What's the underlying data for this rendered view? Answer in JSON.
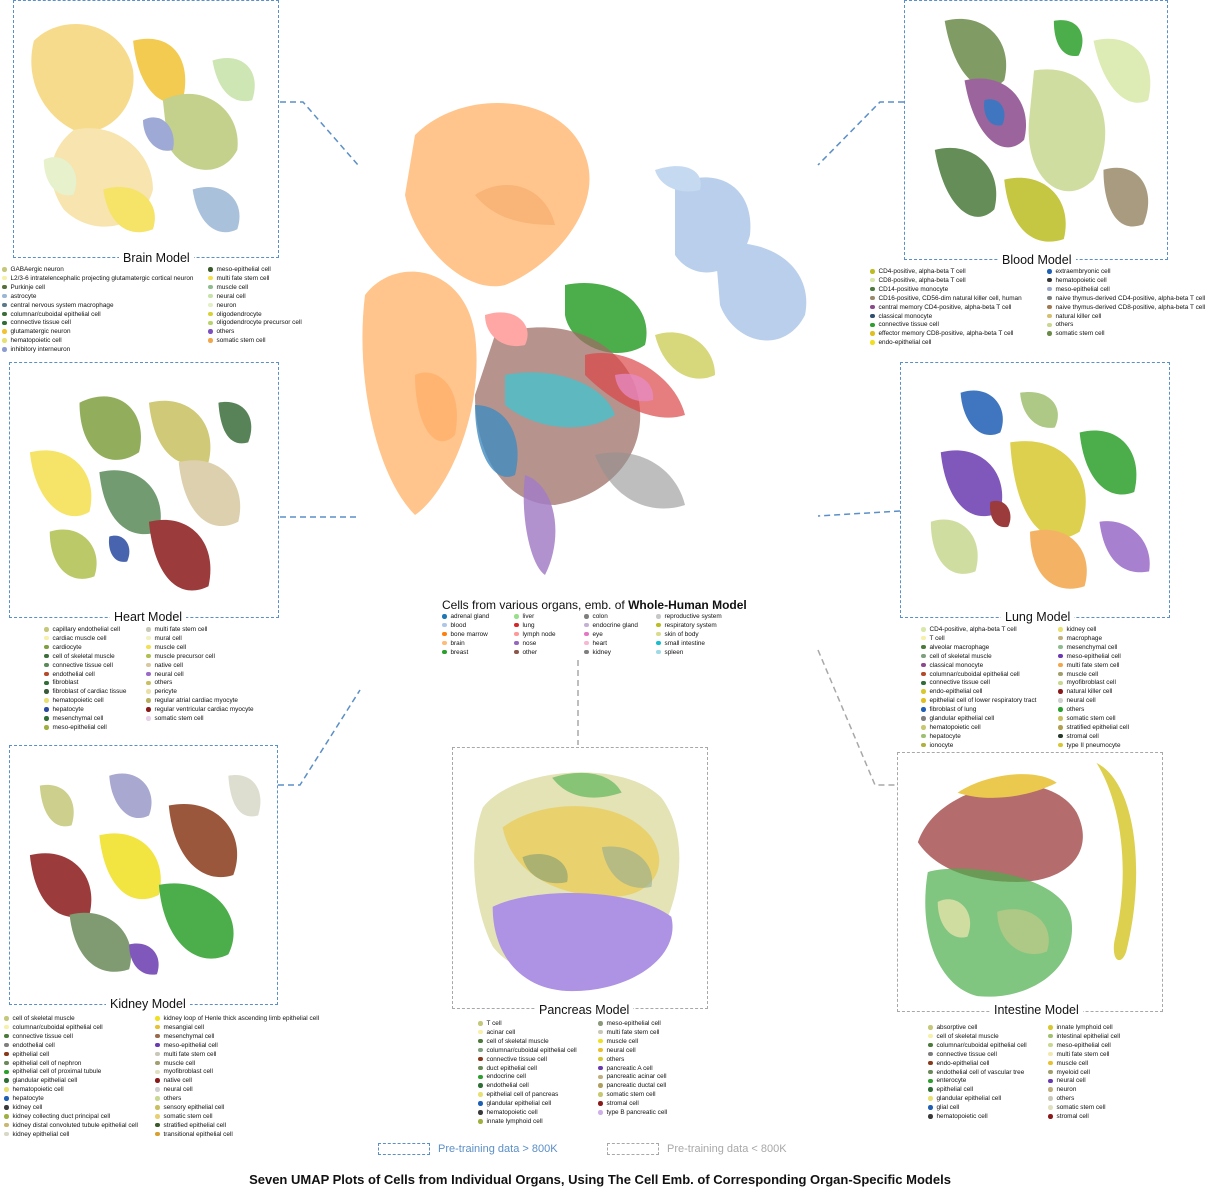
{
  "main_title": "Seven UMAP Plots of Cells from Individual Organs, Using The Cell Emb. of Corresponding Organ-Specific Models",
  "key": {
    "large": "Pre-training data > 800K",
    "small": "Pre-training data < 800K",
    "large_color": "#5b8fc7",
    "small_color": "#a8a8a8"
  },
  "center": {
    "title_prefix": "Cells from various organs, emb. of ",
    "title_bold": "Whole-Human Model",
    "legend": [
      [
        {
          "label": "adrenal gland",
          "color": "#1f77b4"
        },
        {
          "label": "blood",
          "color": "#aec7e8"
        },
        {
          "label": "bone marrow",
          "color": "#ff7f0e"
        },
        {
          "label": "brain",
          "color": "#ffbb78"
        },
        {
          "label": "breast",
          "color": "#2ca02c"
        }
      ],
      [
        {
          "label": "liver",
          "color": "#98df8a"
        },
        {
          "label": "lung",
          "color": "#d62728"
        },
        {
          "label": "lymph node",
          "color": "#ff9896"
        },
        {
          "label": "nose",
          "color": "#9467bd"
        },
        {
          "label": "other",
          "color": "#8c564b"
        }
      ],
      [
        {
          "label": "colon",
          "color": "#7f7f7f"
        },
        {
          "label": "endocrine gland",
          "color": "#c5b0d5"
        },
        {
          "label": "eye",
          "color": "#e377c2"
        },
        {
          "label": "heart",
          "color": "#f7b6d2"
        },
        {
          "label": "kidney",
          "color": "#7f7f7f"
        }
      ],
      [
        {
          "label": "reproductive system",
          "color": "#c7c7c7"
        },
        {
          "label": "respiratory system",
          "color": "#bcbd22"
        },
        {
          "label": "skin of body",
          "color": "#dbdb8d"
        },
        {
          "label": "small intestine",
          "color": "#17becf"
        },
        {
          "label": "spleen",
          "color": "#9edae5"
        }
      ]
    ]
  },
  "panels": [
    {
      "id": "brain",
      "title": "Brain Model",
      "legend": [
        [
          {
            "label": "GABAergic neuron",
            "color": "#c5c77a"
          },
          {
            "label": "L2/3-6 intratelencephalic projecting glutamatergic cortical neuron",
            "color": "#f6f0a8"
          },
          {
            "label": "Purkinje cell",
            "color": "#55703b"
          },
          {
            "label": "astrocyte",
            "color": "#9cb7d5"
          },
          {
            "label": "central nervous system macrophage",
            "color": "#5a7a8a"
          },
          {
            "label": "columnar/cuboidal epithelial cell",
            "color": "#3c6e3c"
          },
          {
            "label": "connective tissue cell",
            "color": "#2f6e35"
          },
          {
            "label": "glutamatergic neuron",
            "color": "#f1c232"
          },
          {
            "label": "hematopoietic cell",
            "color": "#e8e070"
          },
          {
            "label": "inhibitory interneuron",
            "color": "#8e9bd0"
          }
        ],
        [
          {
            "label": "meso-epithelial cell",
            "color": "#3a5a2a"
          },
          {
            "label": "multi fate stem cell",
            "color": "#f4e04d"
          },
          {
            "label": "muscle cell",
            "color": "#8fbc8f"
          },
          {
            "label": "neural cell",
            "color": "#c6e2a8"
          },
          {
            "label": "neuron",
            "color": "#e3efc4"
          },
          {
            "label": "oligodendrocyte",
            "color": "#d8d23a"
          },
          {
            "label": "oligodendrocyte precursor cell",
            "color": "#b9d36c"
          },
          {
            "label": "others",
            "color": "#7e4fc1"
          },
          {
            "label": "somatic stem cell",
            "color": "#f3a64a"
          }
        ]
      ]
    },
    {
      "id": "blood",
      "title": "Blood Model",
      "legend": [
        [
          {
            "label": "CD4-positive, alpha-beta T cell",
            "color": "#bcbd22"
          },
          {
            "label": "CD8-positive, alpha-beta T cell",
            "color": "#d8e8a8"
          },
          {
            "label": "CD14-positive monocyte",
            "color": "#4b7a3a"
          },
          {
            "label": "CD16-positive, CD56-dim natural killer cell, human",
            "color": "#9a8a6a"
          },
          {
            "label": "central memory CD4-positive, alpha-beta T cell",
            "color": "#8b4a8b"
          },
          {
            "label": "classical monocyte",
            "color": "#2f4f6f"
          },
          {
            "label": "connective tissue cell",
            "color": "#2ca02c"
          },
          {
            "label": "effector memory CD8-positive, alpha-beta T cell",
            "color": "#e0c020"
          },
          {
            "label": "endo-epithelial cell",
            "color": "#f0e020"
          }
        ],
        [
          {
            "label": "extraembryonic cell",
            "color": "#1f5fb4"
          },
          {
            "label": "hematopoietic cell",
            "color": "#3a3a3a"
          },
          {
            "label": "meso-epithelial cell",
            "color": "#9aa8c8"
          },
          {
            "label": "naive thymus-derived CD4-positive, alpha-beta T cell",
            "color": "#7f7f7f"
          },
          {
            "label": "naive thymus-derived CD8-positive, alpha-beta T cell",
            "color": "#a07a50"
          },
          {
            "label": "natural killer cell",
            "color": "#d4c070"
          },
          {
            "label": "others",
            "color": "#c8d890"
          },
          {
            "label": "somatic stem cell",
            "color": "#6a8a4a"
          }
        ]
      ]
    },
    {
      "id": "heart",
      "title": "Heart Model",
      "legend": [
        [
          {
            "label": "capillary endothelial cell",
            "color": "#c5c77a"
          },
          {
            "label": "cardiac muscle cell",
            "color": "#f6f0a8"
          },
          {
            "label": "cardiocyte",
            "color": "#7fa040"
          },
          {
            "label": "cell of skeletal muscle",
            "color": "#3c6e3c"
          },
          {
            "label": "connective tissue cell",
            "color": "#5a8a5a"
          },
          {
            "label": "endothelial cell",
            "color": "#b44a2a"
          },
          {
            "label": "fibroblast",
            "color": "#2f6e35"
          },
          {
            "label": "fibroblast of cardiac tissue",
            "color": "#3a5a3a"
          },
          {
            "label": "hematopoietic cell",
            "color": "#e8e070"
          },
          {
            "label": "hepatocyte",
            "color": "#2a4aa0"
          },
          {
            "label": "mesenchymal cell",
            "color": "#2f6e35"
          },
          {
            "label": "meso-epithelial cell",
            "color": "#a0b040"
          }
        ],
        [
          {
            "label": "multi fate stem cell",
            "color": "#c8c8b8"
          },
          {
            "label": "mural cell",
            "color": "#f0f0c0"
          },
          {
            "label": "muscle cell",
            "color": "#f4e04d"
          },
          {
            "label": "muscle precursor cell",
            "color": "#b0c050"
          },
          {
            "label": "native cell",
            "color": "#d8c8a0"
          },
          {
            "label": "neural cell",
            "color": "#9a6ac8"
          },
          {
            "label": "others",
            "color": "#c8c060"
          },
          {
            "label": "pericyte",
            "color": "#e8e0a8"
          },
          {
            "label": "regular atrial cardiac myocyte",
            "color": "#b8b060"
          },
          {
            "label": "regular ventricular cardiac myocyte",
            "color": "#8a1a1a"
          },
          {
            "label": "somatic stem cell",
            "color": "#e8d0e8"
          }
        ]
      ]
    },
    {
      "id": "lung",
      "title": "Lung Model",
      "legend": [
        [
          {
            "label": "CD4-positive, alpha-beta T cell",
            "color": "#d8e8a8"
          },
          {
            "label": "T cell",
            "color": "#f6f0a8"
          },
          {
            "label": "alveolar macrophage",
            "color": "#4b7a3a"
          },
          {
            "label": "cell of skeletal muscle",
            "color": "#7f9f7f"
          },
          {
            "label": "classical monocyte",
            "color": "#8b4a8b"
          },
          {
            "label": "columnar/cuboidal epithelial cell",
            "color": "#b44a2a"
          },
          {
            "label": "connective tissue cell",
            "color": "#2f6e35"
          },
          {
            "label": "endo-epithelial cell",
            "color": "#d8c830"
          },
          {
            "label": "epithelial cell of lower respiratory tract",
            "color": "#e0c020"
          },
          {
            "label": "fibroblast of lung",
            "color": "#1f5fb4"
          },
          {
            "label": "glandular epithelial cell",
            "color": "#7f7f7f"
          },
          {
            "label": "hematopoietic cell",
            "color": "#c8c870"
          },
          {
            "label": "hepatocyte",
            "color": "#a0c070"
          },
          {
            "label": "ionocyte",
            "color": "#b0b040"
          }
        ],
        [
          {
            "label": "kidney cell",
            "color": "#e8e070"
          },
          {
            "label": "macrophage",
            "color": "#c0b080"
          },
          {
            "label": "mesenchymal cell",
            "color": "#8fbc8f"
          },
          {
            "label": "meso-epithelial cell",
            "color": "#6a3ab0"
          },
          {
            "label": "multi fate stem cell",
            "color": "#f3a64a"
          },
          {
            "label": "muscle cell",
            "color": "#a0a070"
          },
          {
            "label": "myofibroblast cell",
            "color": "#c8d890"
          },
          {
            "label": "natural killer cell",
            "color": "#8a1a1a"
          },
          {
            "label": "neural cell",
            "color": "#d0d0d0"
          },
          {
            "label": "others",
            "color": "#2ca02c"
          },
          {
            "label": "somatic stem cell",
            "color": "#c8c060"
          },
          {
            "label": "stratified epithelial cell",
            "color": "#b0a050"
          },
          {
            "label": "stromal cell",
            "color": "#2a3a2a"
          },
          {
            "label": "type II pneumocyte",
            "color": "#d8c830"
          }
        ]
      ]
    },
    {
      "id": "kidney",
      "title": "Kidney Model",
      "legend": [
        [
          {
            "label": "cell of skeletal muscle",
            "color": "#c5c77a"
          },
          {
            "label": "columnar/cuboidal epithelial cell",
            "color": "#f6f0a8"
          },
          {
            "label": "connective tissue cell",
            "color": "#4b7a3a"
          },
          {
            "label": "endothelial cell",
            "color": "#7f7f7f"
          },
          {
            "label": "epithelial cell",
            "color": "#8a3a1a"
          },
          {
            "label": "epithelial cell of nephron",
            "color": "#6a8a5a"
          },
          {
            "label": "epithelial cell of proximal tubule",
            "color": "#2ca02c"
          },
          {
            "label": "glandular epithelial cell",
            "color": "#2f6e35"
          },
          {
            "label": "hematopoietic cell",
            "color": "#e8e070"
          },
          {
            "label": "hepatocyte",
            "color": "#1f5fb4"
          },
          {
            "label": "kidney cell",
            "color": "#3a3a3a"
          },
          {
            "label": "kidney collecting duct principal cell",
            "color": "#a0b040"
          },
          {
            "label": "kidney distal convoluted tubule epithelial cell",
            "color": "#c8b870"
          },
          {
            "label": "kidney epithelial cell",
            "color": "#d8d8c8"
          }
        ],
        [
          {
            "label": "kidney loop of Henle thick ascending limb epithelial cell",
            "color": "#f0e020"
          },
          {
            "label": "mesangial cell",
            "color": "#e8c030"
          },
          {
            "label": "mesenchymal cell",
            "color": "#9a6a4a"
          },
          {
            "label": "meso-epithelial cell",
            "color": "#6a3ab0"
          },
          {
            "label": "multi fate stem cell",
            "color": "#c8c8b8"
          },
          {
            "label": "muscle cell",
            "color": "#a0a070"
          },
          {
            "label": "myofibroblast cell",
            "color": "#e0e0c0"
          },
          {
            "label": "native cell",
            "color": "#8a1a1a"
          },
          {
            "label": "neural cell",
            "color": "#d0d0d0"
          },
          {
            "label": "others",
            "color": "#c8d890"
          },
          {
            "label": "sensory epithelial cell",
            "color": "#c8c060"
          },
          {
            "label": "somatic stem cell",
            "color": "#e8d070"
          },
          {
            "label": "stratified epithelial cell",
            "color": "#3a5a2a"
          },
          {
            "label": "transitional epithelial cell",
            "color": "#d8a030"
          }
        ]
      ]
    },
    {
      "id": "pancreas",
      "title": "Pancreas Model",
      "legend": [
        [
          {
            "label": "T cell",
            "color": "#c5c77a"
          },
          {
            "label": "acinar cell",
            "color": "#f6f0a8"
          },
          {
            "label": "cell of skeletal muscle",
            "color": "#4b7a3a"
          },
          {
            "label": "columnar/cuboidal epithelial cell",
            "color": "#7f9f7f"
          },
          {
            "label": "connective tissue cell",
            "color": "#8a3a1a"
          },
          {
            "label": "duct epithelial cell",
            "color": "#6a8a5a"
          },
          {
            "label": "endocrine cell",
            "color": "#2ca02c"
          },
          {
            "label": "endothelial cell",
            "color": "#2f6e35"
          },
          {
            "label": "epithelial cell of pancreas",
            "color": "#e8e070"
          },
          {
            "label": "glandular epithelial cell",
            "color": "#1f5fb4"
          },
          {
            "label": "hematopoietic cell",
            "color": "#3a3a3a"
          },
          {
            "label": "innate lymphoid cell",
            "color": "#a0b040"
          }
        ],
        [
          {
            "label": "meso-epithelial cell",
            "color": "#8a9a7a"
          },
          {
            "label": "multi fate stem cell",
            "color": "#c8c8b8"
          },
          {
            "label": "muscle cell",
            "color": "#f0e020"
          },
          {
            "label": "neural cell",
            "color": "#e8c030"
          },
          {
            "label": "others",
            "color": "#d8c830"
          },
          {
            "label": "pancreatic A cell",
            "color": "#6a3ab0"
          },
          {
            "label": "pancreatic acinar cell",
            "color": "#c0b080"
          },
          {
            "label": "pancreatic ductal cell",
            "color": "#b0a060"
          },
          {
            "label": "somatic stem cell",
            "color": "#c8c870"
          },
          {
            "label": "stromal cell",
            "color": "#8a1a1a"
          },
          {
            "label": "type B pancreatic cell",
            "color": "#d0b0e8"
          }
        ]
      ]
    },
    {
      "id": "intestine",
      "title": "Intestine Model",
      "legend": [
        [
          {
            "label": "absorptive cell",
            "color": "#c5c77a"
          },
          {
            "label": "cell of skeletal muscle",
            "color": "#f6f0a8"
          },
          {
            "label": "columnar/cuboidal epithelial cell",
            "color": "#4b7a3a"
          },
          {
            "label": "connective tissue cell",
            "color": "#7f7f7f"
          },
          {
            "label": "endo-epithelial cell",
            "color": "#8a3a1a"
          },
          {
            "label": "endothelial cell of vascular tree",
            "color": "#6a8a5a"
          },
          {
            "label": "enterocyte",
            "color": "#2ca02c"
          },
          {
            "label": "epithelial cell",
            "color": "#2f6e35"
          },
          {
            "label": "glandular epithelial cell",
            "color": "#e8e070"
          },
          {
            "label": "glial cell",
            "color": "#1f5fb4"
          },
          {
            "label": "hematopoietic cell",
            "color": "#3a3a3a"
          }
        ],
        [
          {
            "label": "innate lymphoid cell",
            "color": "#d8c830"
          },
          {
            "label": "intestinal epithelial cell",
            "color": "#a0c070"
          },
          {
            "label": "meso-epithelial cell",
            "color": "#c8d890"
          },
          {
            "label": "multi fate stem cell",
            "color": "#f0e8b0"
          },
          {
            "label": "muscle cell",
            "color": "#e8c030"
          },
          {
            "label": "myeloid cell",
            "color": "#a0a070"
          },
          {
            "label": "neural cell",
            "color": "#6a3ab0"
          },
          {
            "label": "neuron",
            "color": "#c0b080"
          },
          {
            "label": "others",
            "color": "#c8c8b8"
          },
          {
            "label": "somatic stem cell",
            "color": "#e0e0c0"
          },
          {
            "label": "stromal cell",
            "color": "#8a1a1a"
          }
        ]
      ]
    }
  ]
}
